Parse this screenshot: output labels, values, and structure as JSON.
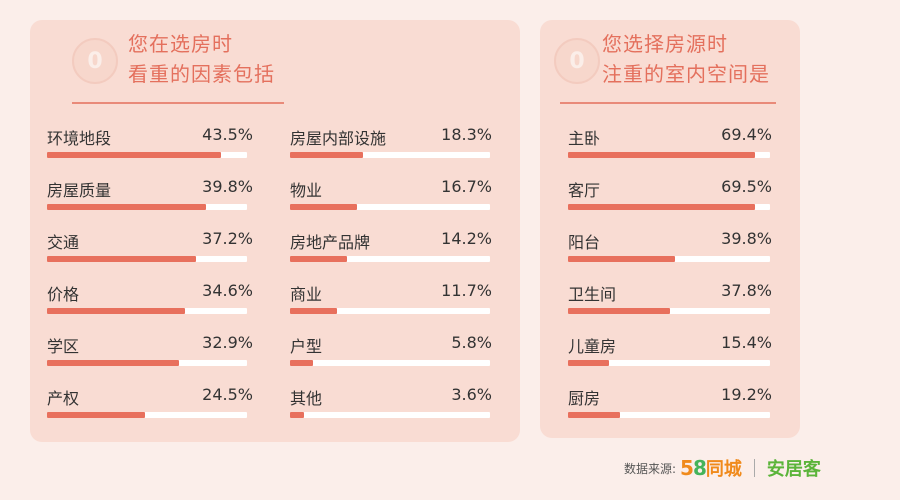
{
  "colors": {
    "bar": "#e8705d",
    "track": "#ffffff",
    "title": "#e4705d",
    "panel": "#f9dcd3",
    "background": "#fbeeea"
  },
  "panels": {
    "left": {
      "badge": "0",
      "title_lines": [
        "您在选房时",
        "看重的因素包括"
      ]
    },
    "right": {
      "badge": "0",
      "title_lines": [
        "您选择房源时",
        "注重的室内空间是"
      ]
    }
  },
  "chart_data": [
    {
      "type": "bar",
      "title": "您在选房时看重的因素包括",
      "categories": [
        "环境地段",
        "房屋质量",
        "交通",
        "价格",
        "学区",
        "产权"
      ],
      "values": [
        43.5,
        39.8,
        37.2,
        34.6,
        32.9,
        24.5
      ],
      "labels": [
        "43.5%",
        "39.8%",
        "37.2%",
        "34.6%",
        "32.9%",
        "24.5%"
      ],
      "xlim": [
        0,
        50
      ],
      "unit": "%"
    },
    {
      "type": "bar",
      "title": "您在选房时看重的因素包括",
      "categories": [
        "房屋内部设施",
        "物业",
        "房地产品牌",
        "商业",
        "户型",
        "其他"
      ],
      "values": [
        18.3,
        16.7,
        14.2,
        11.7,
        5.8,
        3.6
      ],
      "labels": [
        "18.3%",
        "16.7%",
        "14.2%",
        "11.7%",
        "5.8%",
        "3.6%"
      ],
      "xlim": [
        0,
        50
      ],
      "unit": "%"
    },
    {
      "type": "bar",
      "title": "您选择房源时注重的室内空间是",
      "categories": [
        "主卧",
        "客厅",
        "阳台",
        "卫生间",
        "儿童房",
        "厨房"
      ],
      "values": [
        69.4,
        69.5,
        39.8,
        37.8,
        15.4,
        19.2
      ],
      "labels": [
        "69.4%",
        "69.5%",
        "39.8%",
        "37.8%",
        "15.4%",
        "19.2%"
      ],
      "xlim": [
        0,
        75
      ],
      "unit": "%"
    }
  ],
  "footer": {
    "source_label": "数据来源:",
    "logo_58_digit5": "5",
    "logo_58_digit8": "8",
    "logo_58_text": "同城",
    "logo_anjuke": "安居客"
  }
}
